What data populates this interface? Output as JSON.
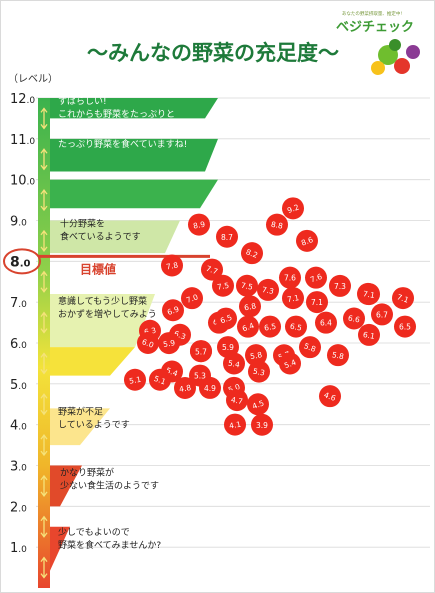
{
  "title": "〜みんなの野菜の充足度〜",
  "logo": {
    "tagline": "あなたの野菜摂取量、推定中!",
    "brand": "ベジチェック",
    "colors": [
      "#6fbe2e",
      "#e4362b",
      "#f7c21b",
      "#8b3a94",
      "#3a8f2a"
    ]
  },
  "level_unit_label": "（レベル）",
  "highlight_color": "#d8432e",
  "goal_label": "目標値",
  "chart_data": {
    "type": "scatter",
    "ylim": [
      0.0,
      12.0
    ],
    "ytick_labels": [
      "1.0",
      "2.0",
      "3.0",
      "4.0",
      "5.0",
      "6.0",
      "7.0",
      "8.0",
      "9.0",
      "10.0",
      "11.0",
      "12.0"
    ],
    "ytick_values": [
      1,
      2,
      3,
      4,
      5,
      6,
      7,
      8,
      9,
      10,
      11,
      12
    ],
    "target_value": 8.0,
    "zones": [
      {
        "from": 10.0,
        "to": 12.0,
        "color": "#2ea84a",
        "label": "すばらしい!\nこれからも野菜をたっぷりと"
      },
      {
        "from": 10.0,
        "to": 11.0,
        "color": "#2ea84a",
        "label": "たっぷり野菜を食べていますね!"
      },
      {
        "from": 9.0,
        "to": 10.0,
        "color": "#3bb24d",
        "label": ""
      },
      {
        "from": 8.0,
        "to": 9.0,
        "color": "#cfe7a7",
        "label": "十分野菜を\n食べているようです"
      },
      {
        "from": 6.0,
        "to": 7.5,
        "color": "#e6f2b0",
        "label": "意識してもう少し野菜\nおかずを増やしてみよう"
      },
      {
        "from": 5.0,
        "to": 6.0,
        "color": "#f6e23a",
        "label": ""
      },
      {
        "from": 3.8,
        "to": 5.0,
        "color": "#fce58d",
        "label": "野菜が不足\nしているようです"
      },
      {
        "from": 2.0,
        "to": 3.0,
        "color": "#e14a2a",
        "label": "かなり野菜が\n少ない食生活のようです"
      },
      {
        "from": 0.2,
        "to": 1.5,
        "color": "#e8462d",
        "label": "少しでもよいので\n野菜を食べてみませんか?"
      }
    ],
    "points": [
      {
        "label": "9.2",
        "value": 9.2
      },
      {
        "label": "8.9",
        "value": 8.9
      },
      {
        "label": "8.7",
        "value": 8.7
      },
      {
        "label": "8.8",
        "value": 8.8
      },
      {
        "label": "8.2",
        "value": 8.2
      },
      {
        "label": "8.6",
        "value": 8.6
      },
      {
        "label": "7.8",
        "value": 7.8
      },
      {
        "label": "7.6",
        "value": 7.6
      },
      {
        "label": "7.5",
        "value": 7.5
      },
      {
        "label": "7.7",
        "value": 7.7
      },
      {
        "label": "7.6",
        "value": 7.6
      },
      {
        "label": "7.5",
        "value": 7.5
      },
      {
        "label": "7.3",
        "value": 7.3
      },
      {
        "label": "7.3",
        "value": 7.3
      },
      {
        "label": "7.3",
        "value": 7.3
      },
      {
        "label": "7.0",
        "value": 7.0
      },
      {
        "label": "7.1",
        "value": 7.1
      },
      {
        "label": "7.1",
        "value": 7.1
      },
      {
        "label": "7.1",
        "value": 7.1
      },
      {
        "label": "7.1",
        "value": 7.1
      },
      {
        "label": "6.9",
        "value": 6.9
      },
      {
        "label": "6.8",
        "value": 6.8
      },
      {
        "label": "6.7",
        "value": 6.7
      },
      {
        "label": "6.5",
        "value": 6.5
      },
      {
        "label": "6.4",
        "value": 6.4
      },
      {
        "label": "6.4",
        "value": 6.4
      },
      {
        "label": "6.5",
        "value": 6.5
      },
      {
        "label": "6.4",
        "value": 6.4
      },
      {
        "label": "6.6",
        "value": 6.6
      },
      {
        "label": "6.3",
        "value": 6.3
      },
      {
        "label": "6.5",
        "value": 6.5
      },
      {
        "label": "6.3",
        "value": 6.3
      },
      {
        "label": "6.5",
        "value": 6.5
      },
      {
        "label": "6.1",
        "value": 6.1
      },
      {
        "label": "6.0",
        "value": 6.0
      },
      {
        "label": "5.9",
        "value": 5.9
      },
      {
        "label": "5.9",
        "value": 5.9
      },
      {
        "label": "5.9",
        "value": 5.9
      },
      {
        "label": "5.8",
        "value": 5.8
      },
      {
        "label": "5.8",
        "value": 5.8
      },
      {
        "label": "5.7",
        "value": 5.7
      },
      {
        "label": "5.8",
        "value": 5.8
      },
      {
        "label": "5.7",
        "value": 5.7
      },
      {
        "label": "5.3",
        "value": 5.3
      },
      {
        "label": "5.4",
        "value": 5.4
      },
      {
        "label": "5.4",
        "value": 5.4
      },
      {
        "label": "5.1",
        "value": 5.1
      },
      {
        "label": "5.3",
        "value": 5.3
      },
      {
        "label": "5.4",
        "value": 5.4
      },
      {
        "label": "5.1",
        "value": 5.1
      },
      {
        "label": "5.0",
        "value": 5.0
      },
      {
        "label": "4.8",
        "value": 4.8
      },
      {
        "label": "4.9",
        "value": 4.9
      },
      {
        "label": "4.7",
        "value": 4.7
      },
      {
        "label": "4.6",
        "value": 4.6
      },
      {
        "label": "4.5",
        "value": 4.5
      },
      {
        "label": "4.1",
        "value": 4.1
      },
      {
        "label": "3.9",
        "value": 3.9
      }
    ]
  }
}
